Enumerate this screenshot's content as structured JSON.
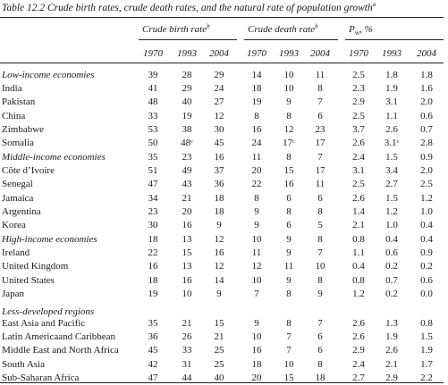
{
  "caption": {
    "label": "Table 12.2",
    "text": "Crude birth rates, crude death rates, and the natural rate of population growth",
    "note": "a"
  },
  "headers": {
    "birth": {
      "text": "Crude birth rate",
      "note": "b"
    },
    "death": {
      "text": "Crude death rate",
      "note": "b"
    },
    "growth": {
      "text": "P",
      "sub": "w",
      "suffix": ", %"
    }
  },
  "years": [
    "1970",
    "1993",
    "2004"
  ],
  "sections": [
    {
      "title": "Low-income economies",
      "rows": [
        {
          "name": "Low-income economies",
          "values": [
            "39",
            "28",
            "29",
            "14",
            "10",
            "11",
            "2.5",
            "1.8",
            "1.8"
          ]
        },
        {
          "name": "India",
          "values": [
            "41",
            "29",
            "24",
            "18",
            "10",
            "8",
            "2.3",
            "1.9",
            "1.6"
          ]
        },
        {
          "name": "Pakistan",
          "values": [
            "48",
            "40",
            "27",
            "19",
            "9",
            "7",
            "2.9",
            "3.1",
            "2.0"
          ]
        },
        {
          "name": "China",
          "values": [
            "33",
            "19",
            "12",
            "8",
            "8",
            "6",
            "2.5",
            "1.1",
            "0.6"
          ]
        },
        {
          "name": "Zimbabwe",
          "values": [
            "53",
            "38",
            "30",
            "16",
            "12",
            "23",
            "3.7",
            "2.6",
            "0.7"
          ]
        },
        {
          "name": "Somalia",
          "values": [
            "50",
            "48ᶜ",
            "45",
            "24",
            "17ᶜ",
            "17",
            "2.6",
            "3.1ᶜ",
            "2.8"
          ]
        }
      ]
    },
    {
      "title": "Middle-income economies",
      "rows": [
        {
          "name": "Middle-income economies",
          "values": [
            "35",
            "23",
            "16",
            "11",
            "8",
            "7",
            "2.4",
            "1.5",
            "0.9"
          ]
        },
        {
          "name": "Côte d’Ivoire",
          "values": [
            "51",
            "49",
            "37",
            "20",
            "15",
            "17",
            "3.1",
            "3.4",
            "2.0"
          ]
        },
        {
          "name": "Senegal",
          "values": [
            "47",
            "43",
            "36",
            "22",
            "16",
            "11",
            "2.5",
            "2.7",
            "2.5"
          ]
        },
        {
          "name": "Jamaica",
          "values": [
            "34",
            "21",
            "18",
            "8",
            "6",
            "6",
            "2.6",
            "1.5",
            "1.2"
          ]
        },
        {
          "name": "Argentina",
          "values": [
            "23",
            "20",
            "18",
            "9",
            "8",
            "8",
            "1.4",
            "1.2",
            "1.0"
          ]
        },
        {
          "name": "Korea",
          "values": [
            "30",
            "16",
            "9",
            "9",
            "6",
            "5",
            "2.1",
            "1.0",
            "0.4"
          ]
        }
      ]
    },
    {
      "title": "High-income economies",
      "rows": [
        {
          "name": "High-income economies",
          "values": [
            "18",
            "13",
            "12",
            "10",
            "9",
            "8",
            "0.8",
            "0.4",
            "0.4"
          ]
        },
        {
          "name": "Ireland",
          "values": [
            "22",
            "15",
            "16",
            "11",
            "9",
            "7",
            "1.1",
            "0.6",
            "0.9"
          ]
        },
        {
          "name": "United Kingdom",
          "values": [
            "16",
            "13",
            "12",
            "12",
            "11",
            "10",
            "0.4",
            "0.2",
            "0.2"
          ]
        },
        {
          "name": "United States",
          "values": [
            "18",
            "16",
            "14",
            "10",
            "9",
            "8",
            "0.8",
            "0.7",
            "0.6"
          ]
        },
        {
          "name": "Japan",
          "values": [
            "19",
            "10",
            "9",
            "7",
            "8",
            "9",
            "1.2",
            "0.2",
            "0.0"
          ]
        }
      ]
    },
    {
      "title": "Less-developed regions",
      "rows": [
        {
          "name": "East Asia and Pacific",
          "values": [
            "35",
            "21",
            "15",
            "9",
            "8",
            "7",
            "2.6",
            "1.3",
            "0.8"
          ]
        },
        {
          "name": "Latin Americaand Caribbean",
          "values": [
            "36",
            "26",
            "21",
            "10",
            "7",
            "6",
            "2.6",
            "1.9",
            "1.5"
          ]
        },
        {
          "name": "Middle East and North Africa",
          "values": [
            "45",
            "33",
            "25",
            "16",
            "7",
            "6",
            "2.9",
            "2.6",
            "1.9"
          ]
        },
        {
          "name": "South Asia",
          "values": [
            "42",
            "31",
            "25",
            "18",
            "10",
            "8",
            "2.4",
            "2.1",
            "1.7"
          ]
        },
        {
          "name": "Sub-Saharan Africa",
          "values": [
            "47",
            "44",
            "40",
            "20",
            "15",
            "18",
            "2.7",
            "2.9",
            "2.2"
          ]
        }
      ]
    }
  ]
}
